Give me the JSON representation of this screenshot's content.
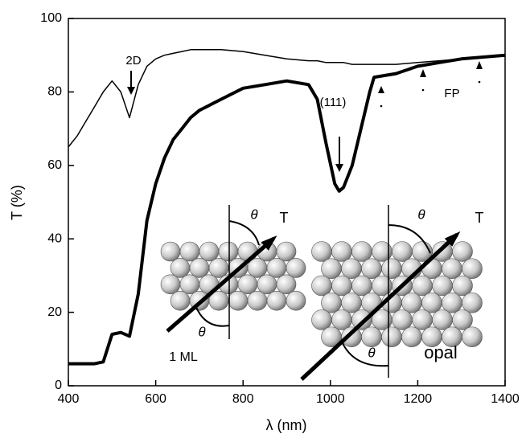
{
  "chart_data": {
    "type": "line",
    "x_label": "λ (nm)",
    "y_label": "T (%)",
    "xlim": [
      400,
      1400
    ],
    "xticks": [
      400,
      600,
      800,
      1000,
      1200,
      1400
    ],
    "ylim": [
      0,
      100
    ],
    "yticks": [
      0,
      20,
      40,
      60,
      80,
      100
    ],
    "x": [
      400,
      420,
      440,
      460,
      480,
      500,
      520,
      540,
      560,
      580,
      600,
      620,
      640,
      660,
      680,
      700,
      750,
      800,
      850,
      900,
      950,
      970,
      990,
      1010,
      1020,
      1030,
      1050,
      1070,
      1090,
      1100,
      1150,
      1200,
      1250,
      1300,
      1350,
      1400
    ],
    "series": [
      {
        "color": "#000000",
        "line_width": 1.5,
        "values": [
          65,
          68,
          72,
          76,
          80,
          83,
          80,
          73,
          82,
          87,
          89,
          90,
          90.5,
          91,
          91.5,
          91.5,
          91.5,
          91,
          90,
          89,
          88.5,
          88.5,
          88,
          88,
          88,
          88,
          87.5,
          87.5,
          87.5,
          87.5,
          87.5,
          88,
          88.5,
          89,
          89.5,
          90
        ]
      },
      {
        "color": "#000000",
        "line_width": 4,
        "values": [
          6,
          6,
          6,
          6,
          6.5,
          14,
          14.5,
          13.5,
          25,
          45,
          55,
          62,
          67,
          70,
          73,
          75,
          78,
          81,
          82,
          83,
          82,
          78,
          66,
          55,
          53,
          54,
          60,
          70,
          80,
          84,
          85,
          87,
          88,
          89,
          89.5,
          90
        ]
      }
    ],
    "annotations": [
      "2D",
      "(111)",
      "FP"
    ],
    "inset_labels": [
      "1 ML",
      "opal"
    ],
    "inset_symbols": [
      "θ",
      "T"
    ]
  }
}
